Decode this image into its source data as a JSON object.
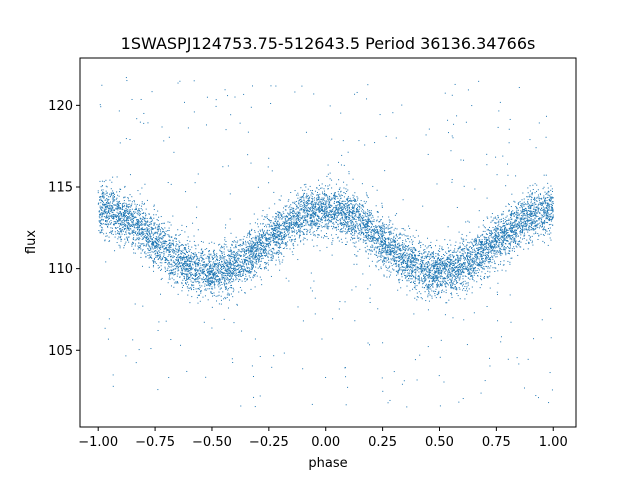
{
  "chart_data": {
    "type": "scatter",
    "title": "1SWASPJ124753.75-512643.5 Period 36136.34766s",
    "xlabel": "phase",
    "ylabel": "flux",
    "xlim": [
      -1.08,
      1.1
    ],
    "ylim": [
      100.3,
      122.9
    ],
    "xticks": [
      -1.0,
      -0.75,
      -0.5,
      -0.25,
      0.0,
      0.25,
      0.5,
      0.75,
      1.0
    ],
    "xtick_labels": [
      "−1.00",
      "−0.75",
      "−0.50",
      "−0.25",
      "0.00",
      "0.25",
      "0.50",
      "0.75",
      "1.00"
    ],
    "yticks": [
      105,
      110,
      115,
      120
    ],
    "ytick_labels": [
      "105",
      "110",
      "115",
      "120"
    ],
    "grid": false,
    "series": [
      {
        "color": "#1f77b4",
        "marker_size": 1,
        "model": "sinusoid",
        "x_range": [
          -1.0,
          1.0
        ],
        "mean_flux": 111.7,
        "amplitude": 1.9,
        "period_in_phase": 1.0,
        "max_at_phase": [
          -1.0,
          0.0,
          1.0
        ],
        "min_at_phase": [
          -0.5,
          0.5
        ],
        "scatter_sigma": 0.75,
        "outlier_range": [
          101.5,
          121.9
        ],
        "n_points": 9000
      }
    ]
  }
}
